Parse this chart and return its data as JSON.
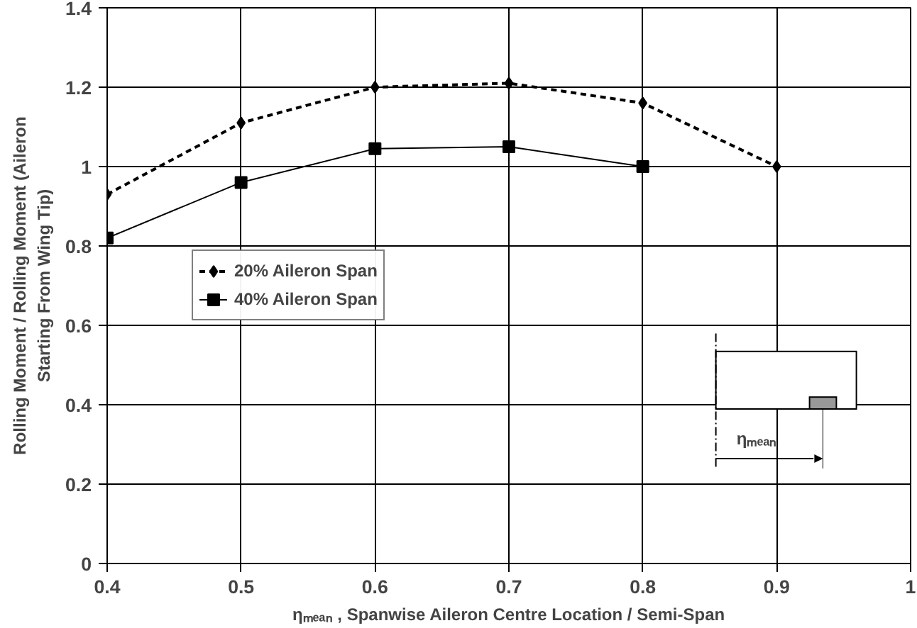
{
  "chart_data": {
    "type": "line",
    "xlabel": "ηₘₑₐₙ , Spanwise Aileron Centre Location / Semi-Span",
    "ylabel": "Rolling Moment / Rolling Moment (Aileron\nStarting From Wing Tip)",
    "xlim": [
      0.4,
      1
    ],
    "xticks": [
      0.4,
      0.5,
      0.6,
      0.7,
      0.8,
      0.9,
      1
    ],
    "ylim": [
      0,
      1.4
    ],
    "yticks": [
      0,
      0.2,
      0.4,
      0.6,
      0.8,
      1,
      1.2,
      1.4
    ],
    "grid": true,
    "legend": "center left",
    "series": [
      {
        "name": "20% Aileron Span",
        "color": "#000000",
        "x": [
          0.4,
          0.5,
          0.6,
          0.7,
          0.8,
          0.9
        ],
        "values": [
          0.93,
          1.11,
          1.2,
          1.21,
          1.16,
          1.0
        ],
        "line_style": "dashed",
        "marker": "diamond"
      },
      {
        "name": "40% Aileron Span",
        "color": "#000000",
        "x": [
          0.4,
          0.5,
          0.6,
          0.7,
          0.8
        ],
        "values": [
          0.82,
          0.96,
          1.045,
          1.05,
          1.0
        ],
        "line_style": "solid",
        "marker": "square"
      }
    ],
    "annotations": [
      "ηₘₑₐₙ"
    ]
  }
}
